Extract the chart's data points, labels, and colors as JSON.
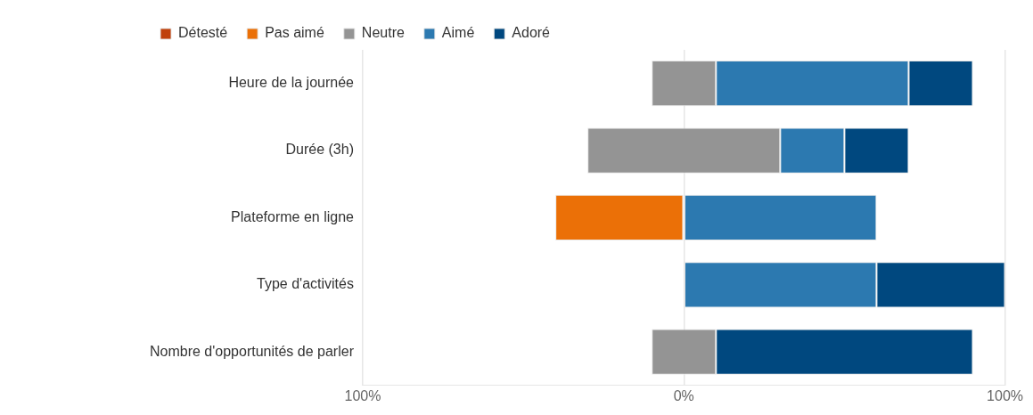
{
  "chart_data": {
    "type": "bar",
    "orientation": "horizontal",
    "categories": [
      "Heure de la journée",
      "Durée (3h)",
      "Plateforme en ligne",
      "Type d'activités",
      "Nombre d'opportunités de parler"
    ],
    "series": [
      {
        "name": "Détesté",
        "color": "#c0410c",
        "values": [
          null,
          null,
          null,
          null,
          null
        ],
        "base": [
          null,
          null,
          null,
          null,
          null
        ]
      },
      {
        "name": "Pas aimé",
        "color": "#eb7007",
        "values": [
          null,
          null,
          40,
          null,
          null
        ],
        "base": [
          null,
          null,
          -40,
          null,
          null
        ]
      },
      {
        "name": "Neutre",
        "color": "#949494",
        "values": [
          20,
          60,
          null,
          null,
          20
        ],
        "base": [
          -10,
          -30,
          null,
          null,
          -10
        ]
      },
      {
        "name": "Aimé",
        "color": "#2c79b0",
        "values": [
          60,
          20,
          60,
          60,
          null
        ],
        "base": [
          10,
          30,
          0,
          0,
          null
        ]
      },
      {
        "name": "Adoré",
        "color": "#00487f",
        "values": [
          20,
          20,
          null,
          40,
          80
        ],
        "base": [
          70,
          50,
          null,
          60,
          10
        ]
      }
    ],
    "xlim": [
      -100,
      100
    ],
    "xticks": [
      {
        "value": -100,
        "label": "100%"
      },
      {
        "value": 0,
        "label": "0%"
      },
      {
        "value": 100,
        "label": "100%"
      }
    ],
    "grid": "x",
    "legend": "top left"
  }
}
